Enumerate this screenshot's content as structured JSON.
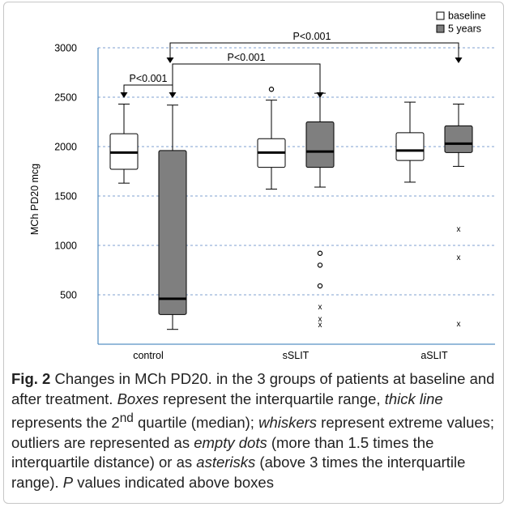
{
  "chart_data": {
    "type": "boxplot",
    "ylabel": "MCh PD20 mcg",
    "ylim": [
      0,
      3000
    ],
    "yticks": [
      500,
      1000,
      1500,
      2000,
      2500,
      3000
    ],
    "grid": "horizontal dashed",
    "legend_position": "top-right",
    "legend": [
      "baseline",
      "5 years"
    ],
    "colors": {
      "baseline": "#ffffff",
      "five_years": "#7f7f7f",
      "grid": "#7fa0d0",
      "axis": "#2e74b5"
    },
    "groups": [
      "control",
      "sSLIT",
      "aSLIT"
    ],
    "series": [
      {
        "group": "control",
        "name": "baseline",
        "min": 1630,
        "q1": 1770,
        "median": 1940,
        "q3": 2130,
        "max": 2430,
        "outliers_circle": [],
        "outliers_x": []
      },
      {
        "group": "control",
        "name": "5 years",
        "min": 150,
        "q1": 300,
        "median": 460,
        "q3": 1960,
        "max": 2420,
        "outliers_circle": [],
        "outliers_x": []
      },
      {
        "group": "sSLIT",
        "name": "baseline",
        "min": 1570,
        "q1": 1790,
        "median": 1940,
        "q3": 2080,
        "max": 2470,
        "outliers_circle": [
          2580
        ],
        "outliers_x": []
      },
      {
        "group": "sSLIT",
        "name": "5 years",
        "min": 1590,
        "q1": 1790,
        "median": 1950,
        "q3": 2250,
        "max": 2540,
        "outliers_circle": [
          920,
          800,
          590
        ],
        "outliers_x": [
          380,
          260,
          200
        ]
      },
      {
        "group": "aSLIT",
        "name": "baseline",
        "min": 1640,
        "q1": 1860,
        "median": 1960,
        "q3": 2140,
        "max": 2450,
        "outliers_circle": [],
        "outliers_x": []
      },
      {
        "group": "aSLIT",
        "name": "5 years",
        "min": 1800,
        "q1": 1940,
        "median": 2030,
        "q3": 2210,
        "max": 2430,
        "outliers_circle": [],
        "outliers_x": [
          1170,
          880,
          210
        ]
      }
    ],
    "annotations": [
      {
        "label": "P<0.001",
        "from": "control baseline",
        "to": "control 5 years"
      },
      {
        "label": "P<0.001",
        "from": "control 5 years",
        "to": "sSLIT 5 years"
      },
      {
        "label": "P<0.001",
        "from": "control 5 years",
        "to": "aSLIT 5 years"
      }
    ]
  },
  "caption": {
    "fig_label": "Fig. 2",
    "part1": " Changes in MCh PD20. in the 3 groups of patients at baseline and after treatment. ",
    "italic_boxes": "Boxes",
    "part2": " represent the interquartile range, ",
    "italic_thick": "thick line",
    "part3": " represents the 2",
    "sup_nd": "nd",
    "part4": " quartile (median); ",
    "italic_whiskers": "whiskers",
    "part5": " represent extreme values; outliers are represented as ",
    "italic_dots": "empty dots",
    "part6": " (more than 1.5 times the interquartile distance) or as ",
    "italic_asterisks": "asterisks",
    "part7": " (above 3 times the interquartile range). ",
    "italic_p": "P",
    "part8": " values indicated above boxes"
  }
}
